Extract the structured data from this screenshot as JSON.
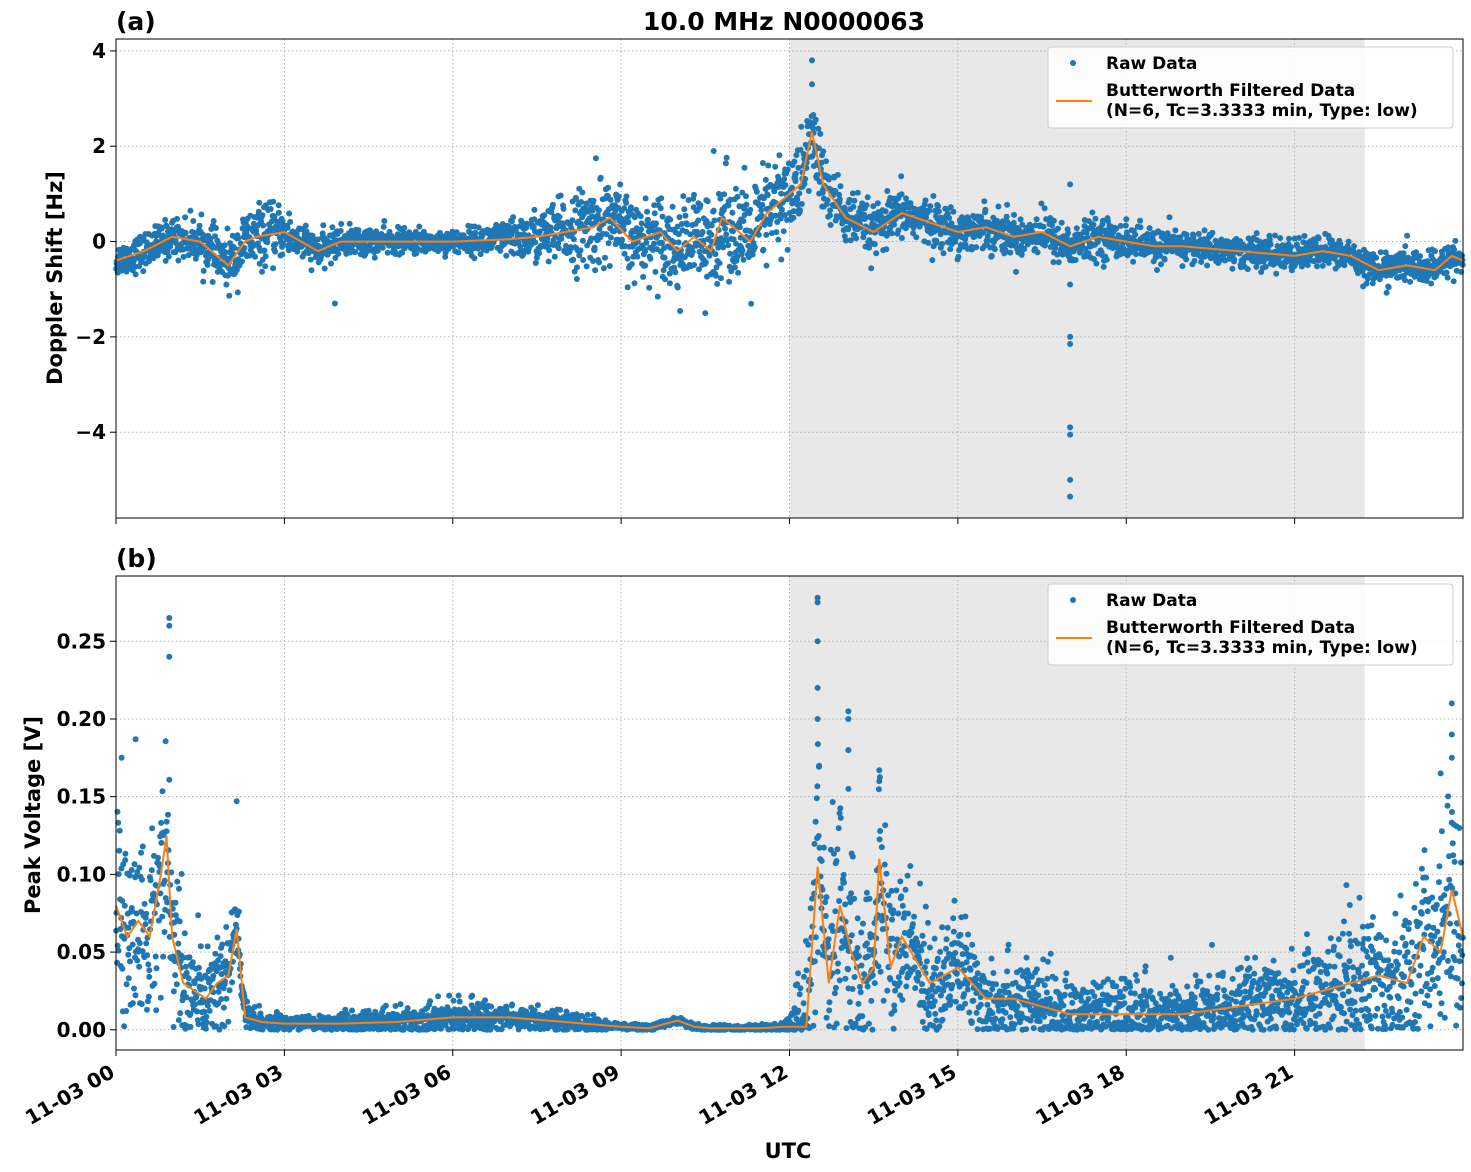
{
  "title": "10.0 MHz N0000063",
  "colors": {
    "raw": "#1f77b4",
    "filtered": "#ff7f0e",
    "shade": "#e8e8e8",
    "grid": "#b0b0b0"
  },
  "chart_data": [
    {
      "type": "scatter",
      "panel_label": "(a)",
      "title": "10.0 MHz N0000063",
      "xlabel": "",
      "ylabel": "Doppler Shift [Hz]",
      "xlim": [
        0,
        24
      ],
      "ylim": [
        -5.8,
        4.25
      ],
      "yticks": [
        4,
        2,
        0,
        -2,
        -4
      ],
      "ytick_labels": [
        "4",
        "2",
        "0",
        "−2",
        "−4"
      ],
      "xticks": [
        0,
        3,
        6,
        9,
        12,
        15,
        18,
        21
      ],
      "grid": true,
      "legend": "top-right",
      "shaded_region": [
        12.0,
        22.25
      ],
      "series": [
        {
          "name": "Raw Data",
          "style": "points",
          "spread": [
            [
              0,
              0.3
            ],
            [
              1.5,
              0.4
            ],
            [
              2.5,
              0.6
            ],
            [
              3.5,
              0.3
            ],
            [
              6,
              0.2
            ],
            [
              7,
              0.35
            ],
            [
              8.5,
              0.8
            ],
            [
              9.5,
              0.7
            ],
            [
              10.5,
              0.9
            ],
            [
              11.5,
              1.0
            ],
            [
              12.4,
              0.8
            ],
            [
              13,
              0.5
            ],
            [
              15,
              0.4
            ],
            [
              17,
              0.4
            ],
            [
              19,
              0.3
            ],
            [
              21,
              0.3
            ],
            [
              24,
              0.3
            ]
          ],
          "outliers": [
            [
              12.4,
              3.8
            ],
            [
              12.4,
              3.3
            ],
            [
              17.0,
              1.2
            ],
            [
              17.0,
              -0.9
            ],
            [
              17.0,
              -2.0
            ],
            [
              17.0,
              -2.15
            ],
            [
              17.0,
              -3.9
            ],
            [
              17.0,
              -4.05
            ],
            [
              17.0,
              -5.0
            ],
            [
              17.0,
              -5.35
            ],
            [
              8.55,
              1.75
            ],
            [
              10.65,
              1.9
            ],
            [
              10.5,
              -1.5
            ],
            [
              3.9,
              -1.3
            ]
          ]
        },
        {
          "name": "Butterworth Filtered Data\n(N=6, Tc=3.3333 min, Type: low)",
          "style": "line",
          "x": [
            0,
            0.5,
            1.0,
            1.5,
            2.0,
            2.3,
            2.5,
            3.0,
            3.3,
            3.6,
            4.0,
            5.0,
            6.0,
            7.0,
            7.5,
            8.0,
            8.5,
            8.8,
            9.2,
            9.7,
            10.0,
            10.3,
            10.6,
            10.8,
            11.0,
            11.3,
            11.6,
            12.0,
            12.2,
            12.4,
            12.6,
            13.0,
            13.5,
            14.0,
            14.5,
            15.0,
            15.5,
            16.0,
            16.5,
            17.0,
            17.5,
            18.0,
            18.5,
            19.0,
            20.0,
            21.0,
            21.5,
            22.0,
            22.5,
            23.0,
            23.5,
            23.8,
            24.0
          ],
          "y": [
            -0.4,
            -0.2,
            0.1,
            0.0,
            -0.5,
            0.0,
            0.1,
            0.2,
            0.0,
            -0.2,
            0.0,
            0.0,
            0.0,
            0.05,
            0.1,
            0.2,
            0.3,
            0.5,
            0.0,
            0.2,
            -0.2,
            0.1,
            -0.2,
            0.5,
            0.3,
            0.0,
            0.6,
            1.0,
            1.2,
            2.3,
            1.2,
            0.5,
            0.2,
            0.6,
            0.4,
            0.2,
            0.3,
            0.1,
            0.2,
            -0.1,
            0.1,
            0.0,
            -0.1,
            -0.1,
            -0.2,
            -0.3,
            -0.2,
            -0.3,
            -0.6,
            -0.5,
            -0.6,
            -0.3,
            -0.4
          ]
        }
      ]
    },
    {
      "type": "scatter",
      "panel_label": "(b)",
      "title": "",
      "xlabel": "UTC",
      "ylabel": "Peak Voltage [V]",
      "xlim": [
        0,
        24
      ],
      "ylim": [
        -0.013,
        0.292
      ],
      "yticks": [
        0.0,
        0.05,
        0.1,
        0.15,
        0.2,
        0.25
      ],
      "ytick_labels": [
        "0.00",
        "0.05",
        "0.10",
        "0.15",
        "0.20",
        "0.25"
      ],
      "xticks": [
        0,
        3,
        6,
        9,
        12,
        15,
        18,
        21
      ],
      "xtick_labels": [
        "11-03 00",
        "11-03 03",
        "11-03 06",
        "11-03 09",
        "11-03 12",
        "11-03 15",
        "11-03 18",
        "11-03 21"
      ],
      "grid": true,
      "legend": "top-right",
      "shaded_region": [
        12.0,
        22.25
      ],
      "series": [
        {
          "name": "Raw Data",
          "style": "points",
          "spread": [
            [
              0,
              0.06
            ],
            [
              0.5,
              0.05
            ],
            [
              1.0,
              0.06
            ],
            [
              1.5,
              0.025
            ],
            [
              2.0,
              0.04
            ],
            [
              2.3,
              0.01
            ],
            [
              3,
              0.003
            ],
            [
              4,
              0.006
            ],
            [
              6,
              0.01
            ],
            [
              8,
              0.006
            ],
            [
              9,
              0.002
            ],
            [
              11.9,
              0.002
            ],
            [
              12.5,
              0.07
            ],
            [
              13.5,
              0.05
            ],
            [
              15,
              0.03
            ],
            [
              17,
              0.02
            ],
            [
              19,
              0.02
            ],
            [
              21,
              0.025
            ],
            [
              23,
              0.05
            ],
            [
              24,
              0.06
            ]
          ],
          "outliers": [
            [
              0.95,
              0.265
            ],
            [
              0.95,
              0.26
            ],
            [
              0.95,
              0.24
            ],
            [
              0.1,
              0.175
            ],
            [
              0.35,
              0.187
            ],
            [
              2.15,
              0.147
            ],
            [
              12.5,
              0.278
            ],
            [
              12.5,
              0.275
            ],
            [
              12.5,
              0.25
            ],
            [
              12.5,
              0.22
            ],
            [
              12.5,
              0.2
            ],
            [
              13.05,
              0.205
            ],
            [
              13.05,
              0.2
            ],
            [
              13.05,
              0.18
            ],
            [
              13.05,
              0.155
            ],
            [
              13.6,
              0.167
            ],
            [
              13.6,
              0.16
            ],
            [
              23.8,
              0.21
            ],
            [
              23.8,
              0.19
            ],
            [
              23.8,
              0.175
            ],
            [
              23.6,
              0.165
            ]
          ]
        },
        {
          "name": "Butterworth Filtered Data\n(N=6, Tc=3.3333 min, Type: low)",
          "style": "line",
          "x": [
            0,
            0.2,
            0.4,
            0.6,
            0.8,
            0.9,
            1.0,
            1.2,
            1.4,
            1.6,
            1.8,
            2.0,
            2.15,
            2.3,
            2.6,
            3.0,
            4.0,
            5.0,
            6.0,
            7.0,
            8.0,
            9.0,
            9.5,
            10.0,
            10.3,
            10.6,
            11.0,
            11.5,
            11.9,
            12.3,
            12.5,
            12.7,
            12.9,
            13.1,
            13.3,
            13.5,
            13.6,
            13.8,
            14.0,
            14.5,
            15.0,
            15.5,
            16.0,
            17.0,
            18.0,
            19.0,
            20.0,
            21.0,
            21.5,
            22.0,
            22.5,
            23.0,
            23.3,
            23.6,
            23.8,
            24.0
          ],
          "y": [
            0.08,
            0.06,
            0.07,
            0.06,
            0.1,
            0.125,
            0.06,
            0.03,
            0.025,
            0.02,
            0.03,
            0.035,
            0.065,
            0.008,
            0.005,
            0.004,
            0.004,
            0.005,
            0.008,
            0.008,
            0.005,
            0.002,
            0.001,
            0.006,
            0.002,
            0.001,
            0.001,
            0.001,
            0.002,
            0.002,
            0.105,
            0.03,
            0.08,
            0.05,
            0.03,
            0.04,
            0.11,
            0.04,
            0.06,
            0.03,
            0.04,
            0.02,
            0.02,
            0.01,
            0.01,
            0.01,
            0.015,
            0.02,
            0.025,
            0.03,
            0.035,
            0.03,
            0.06,
            0.05,
            0.09,
            0.06
          ]
        }
      ]
    }
  ]
}
